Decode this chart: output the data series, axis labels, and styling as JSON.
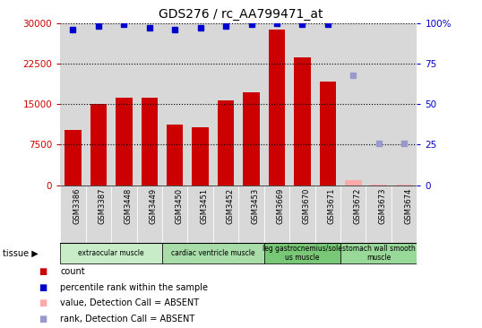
{
  "title": "GDS276 / rc_AA799471_at",
  "samples": [
    "GSM3386",
    "GSM3387",
    "GSM3448",
    "GSM3449",
    "GSM3450",
    "GSM3451",
    "GSM3452",
    "GSM3453",
    "GSM3669",
    "GSM3670",
    "GSM3671",
    "GSM3672",
    "GSM3673",
    "GSM3674"
  ],
  "counts": [
    10200,
    15100,
    16200,
    16200,
    11200,
    10700,
    15700,
    17200,
    28700,
    23600,
    19200,
    900,
    200,
    100
  ],
  "percentile_ranks": [
    96,
    98,
    99,
    97,
    96,
    97,
    98,
    99,
    100,
    99,
    99,
    null,
    null,
    null
  ],
  "absent_values": [
    null,
    null,
    null,
    null,
    null,
    null,
    null,
    null,
    null,
    null,
    null,
    900,
    200,
    100
  ],
  "absent_ranks": [
    null,
    null,
    null,
    null,
    null,
    null,
    null,
    null,
    null,
    null,
    null,
    68,
    26,
    26
  ],
  "detection_absent": [
    false,
    false,
    false,
    false,
    false,
    false,
    false,
    false,
    false,
    false,
    false,
    true,
    true,
    true
  ],
  "tissues": [
    {
      "label": "extraocular muscle",
      "start": 0,
      "end": 4,
      "color": "#c8ecc8"
    },
    {
      "label": "cardiac ventricle muscle",
      "start": 4,
      "end": 8,
      "color": "#a8dca8"
    },
    {
      "label": "leg gastrocnemius/sole\nus muscle",
      "start": 8,
      "end": 11,
      "color": "#78c878"
    },
    {
      "label": "stomach wall smooth\nmuscle",
      "start": 11,
      "end": 14,
      "color": "#98d898"
    }
  ],
  "ylim_left": [
    0,
    30000
  ],
  "ylim_right": [
    0,
    100
  ],
  "yticks_left": [
    0,
    7500,
    15000,
    22500,
    30000
  ],
  "yticks_right": [
    0,
    25,
    50,
    75,
    100
  ],
  "bar_color_present": "#cc0000",
  "bar_color_absent": "#ffaaaa",
  "dot_color_present": "#0000cc",
  "dot_color_absent": "#9999cc",
  "col_bg_color": "#d8d8d8",
  "plot_bg": "#ffffff",
  "ylabel_left_color": "#cc0000",
  "ylabel_right_color": "#0000cc",
  "legend_items": [
    {
      "color": "#cc0000",
      "marker": "s",
      "label": "count"
    },
    {
      "color": "#0000cc",
      "marker": "s",
      "label": "percentile rank within the sample"
    },
    {
      "color": "#ffaaaa",
      "marker": "s",
      "label": "value, Detection Call = ABSENT"
    },
    {
      "color": "#9999cc",
      "marker": "s",
      "label": "rank, Detection Call = ABSENT"
    }
  ]
}
